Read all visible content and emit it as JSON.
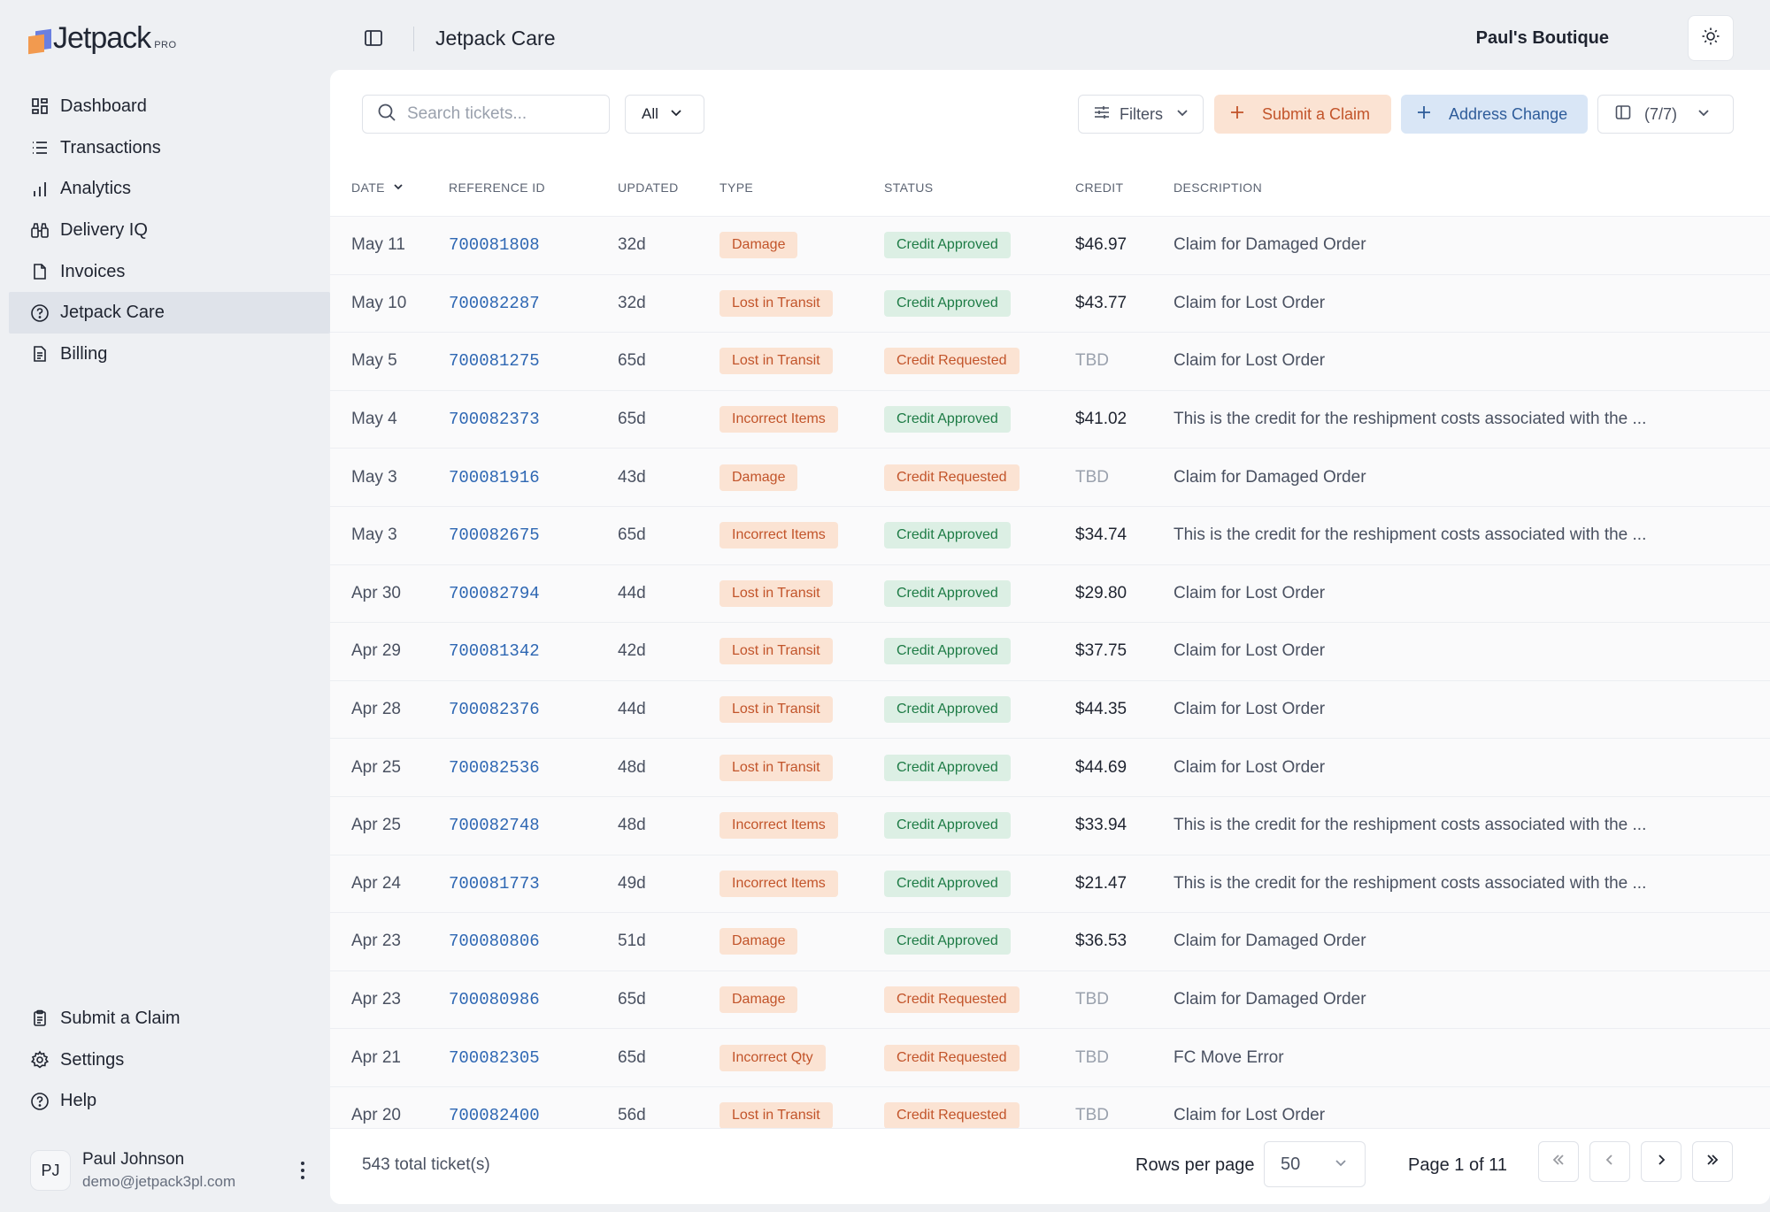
{
  "brand": {
    "name": "Jetpack",
    "badge": "PRO"
  },
  "sidebar": {
    "items": [
      {
        "label": "Dashboard",
        "icon": "dashboard-icon"
      },
      {
        "label": "Transactions",
        "icon": "list-icon"
      },
      {
        "label": "Analytics",
        "icon": "bar-chart-icon"
      },
      {
        "label": "Delivery IQ",
        "icon": "binoculars-icon"
      },
      {
        "label": "Invoices",
        "icon": "file-icon"
      },
      {
        "label": "Jetpack Care",
        "icon": "help-circle-icon",
        "active": true
      },
      {
        "label": "Billing",
        "icon": "receipt-icon"
      }
    ],
    "bottom_items": [
      {
        "label": "Submit a Claim",
        "icon": "clipboard-icon"
      },
      {
        "label": "Settings",
        "icon": "gear-icon"
      },
      {
        "label": "Help",
        "icon": "help-circle-icon"
      }
    ],
    "user": {
      "initials": "PJ",
      "name": "Paul Johnson",
      "email": "demo@jetpack3pl.com"
    }
  },
  "topbar": {
    "title": "Jetpack Care",
    "account": "Paul's Boutique"
  },
  "toolbar": {
    "search_placeholder": "Search tickets...",
    "filter_select": "All",
    "filters_label": "Filters",
    "submit_claim_label": "Submit a Claim",
    "address_change_label": "Address Change",
    "columns_label": "(7/7)"
  },
  "table": {
    "headers": {
      "date": "DATE",
      "reference_id": "REFERENCE ID",
      "updated": "UPDATED",
      "type": "TYPE",
      "status": "STATUS",
      "credit": "CREDIT",
      "description": "DESCRIPTION"
    },
    "rows": [
      {
        "date": "May 11",
        "ref": "700081808",
        "updated": "32d",
        "type": "Damage",
        "status": "Credit Approved",
        "credit": "$46.97",
        "description": "Claim for Damaged Order"
      },
      {
        "date": "May 10",
        "ref": "700082287",
        "updated": "32d",
        "type": "Lost in Transit",
        "status": "Credit Approved",
        "credit": "$43.77",
        "description": "Claim for Lost Order"
      },
      {
        "date": "May 5",
        "ref": "700081275",
        "updated": "65d",
        "type": "Lost in Transit",
        "status": "Credit Requested",
        "credit": "TBD",
        "description": "Claim for Lost Order"
      },
      {
        "date": "May 4",
        "ref": "700082373",
        "updated": "65d",
        "type": "Incorrect Items",
        "status": "Credit Approved",
        "credit": "$41.02",
        "description": "This is the credit for the reshipment costs associated with the ..."
      },
      {
        "date": "May 3",
        "ref": "700081916",
        "updated": "43d",
        "type": "Damage",
        "status": "Credit Requested",
        "credit": "TBD",
        "description": "Claim for Damaged Order"
      },
      {
        "date": "May 3",
        "ref": "700082675",
        "updated": "65d",
        "type": "Incorrect Items",
        "status": "Credit Approved",
        "credit": "$34.74",
        "description": "This is the credit for the reshipment costs associated with the ..."
      },
      {
        "date": "Apr 30",
        "ref": "700082794",
        "updated": "44d",
        "type": "Lost in Transit",
        "status": "Credit Approved",
        "credit": "$29.80",
        "description": "Claim for Lost Order"
      },
      {
        "date": "Apr 29",
        "ref": "700081342",
        "updated": "42d",
        "type": "Lost in Transit",
        "status": "Credit Approved",
        "credit": "$37.75",
        "description": "Claim for Lost Order"
      },
      {
        "date": "Apr 28",
        "ref": "700082376",
        "updated": "44d",
        "type": "Lost in Transit",
        "status": "Credit Approved",
        "credit": "$44.35",
        "description": "Claim for Lost Order"
      },
      {
        "date": "Apr 25",
        "ref": "700082536",
        "updated": "48d",
        "type": "Lost in Transit",
        "status": "Credit Approved",
        "credit": "$44.69",
        "description": "Claim for Lost Order"
      },
      {
        "date": "Apr 25",
        "ref": "700082748",
        "updated": "48d",
        "type": "Incorrect Items",
        "status": "Credit Approved",
        "credit": "$33.94",
        "description": "This is the credit for the reshipment costs associated with the ..."
      },
      {
        "date": "Apr 24",
        "ref": "700081773",
        "updated": "49d",
        "type": "Incorrect Items",
        "status": "Credit Approved",
        "credit": "$21.47",
        "description": "This is the credit for the reshipment costs associated with the ..."
      },
      {
        "date": "Apr 23",
        "ref": "700080806",
        "updated": "51d",
        "type": "Damage",
        "status": "Credit Approved",
        "credit": "$36.53",
        "description": "Claim for Damaged Order"
      },
      {
        "date": "Apr 23",
        "ref": "700080986",
        "updated": "65d",
        "type": "Damage",
        "status": "Credit Requested",
        "credit": "TBD",
        "description": "Claim for Damaged Order"
      },
      {
        "date": "Apr 21",
        "ref": "700082305",
        "updated": "65d",
        "type": "Incorrect Qty",
        "status": "Credit Requested",
        "credit": "TBD",
        "description": "FC Move Error"
      },
      {
        "date": "Apr 20",
        "ref": "700082400",
        "updated": "56d",
        "type": "Lost in Transit",
        "status": "Credit Requested",
        "credit": "TBD",
        "description": "Claim for Lost Order"
      }
    ]
  },
  "footer": {
    "total": "543 total ticket(s)",
    "rows_per_page_label": "Rows per page",
    "rows_per_page": "50",
    "page_info": "Page 1 of 11"
  },
  "colors": {
    "link": "#2e67b3",
    "tag_orange_bg": "#fbe3d3",
    "tag_orange_text": "#c2542a",
    "tag_green_bg": "#dcefe4",
    "tag_green_text": "#1d7b45",
    "address_btn_bg": "#d9e6f6"
  }
}
